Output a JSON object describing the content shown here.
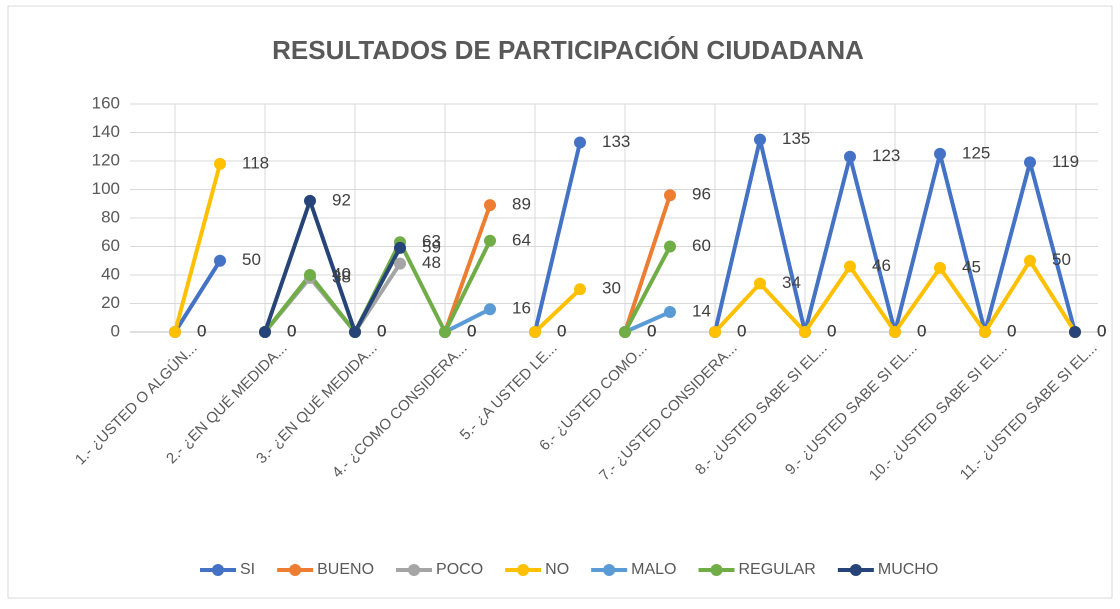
{
  "chart_data": {
    "type": "line",
    "title": "RESULTADOS DE PARTICIPACIÓN CIUDADANA",
    "categories": [
      "1.- ¿USTED O ALGÚN...",
      null,
      "2.- ¿EN QUÉ MEDIDA...",
      null,
      "3.- ¿EN QUÉ MEDIDA...",
      null,
      "4.- ¿COMO CONSIDERA...",
      null,
      "5.- ¿A USTED LE...",
      null,
      "6.- ¿USTED COMO...",
      null,
      "7.- ¿USTED CONSIDERA...",
      null,
      "8.- ¿USTED SABE SI EL...",
      null,
      "9.- ¿USTED SABE SI EL...",
      null,
      "10.- ¿USTED SABE SI EL...",
      null,
      "11.- ¿USTED SABE SI EL..."
    ],
    "series": [
      {
        "name": "SI",
        "color": "#4472c4",
        "values": [
          0,
          50,
          null,
          null,
          null,
          null,
          null,
          null,
          0,
          133,
          null,
          null,
          0,
          135,
          0,
          123,
          0,
          125,
          0,
          119,
          0
        ]
      },
      {
        "name": "BUENO",
        "color": "#ed7d31",
        "values": [
          null,
          null,
          null,
          null,
          null,
          null,
          0,
          89,
          null,
          null,
          0,
          96,
          null,
          null,
          null,
          null,
          null,
          null,
          null,
          null,
          null
        ]
      },
      {
        "name": "POCO",
        "color": "#a5a5a5",
        "values": [
          null,
          null,
          0,
          38,
          0,
          48,
          null,
          null,
          null,
          null,
          null,
          null,
          null,
          null,
          null,
          null,
          null,
          null,
          null,
          null,
          null
        ]
      },
      {
        "name": "NO",
        "color": "#ffc000",
        "values": [
          0,
          118,
          null,
          null,
          null,
          null,
          null,
          null,
          0,
          30,
          null,
          null,
          0,
          34,
          0,
          46,
          0,
          45,
          0,
          50,
          0
        ]
      },
      {
        "name": "MALO",
        "color": "#5b9bd5",
        "values": [
          null,
          null,
          null,
          null,
          null,
          null,
          0,
          16,
          null,
          null,
          0,
          14,
          null,
          null,
          null,
          null,
          null,
          null,
          null,
          null,
          null
        ]
      },
      {
        "name": "REGULAR",
        "color": "#70ad47",
        "values": [
          null,
          null,
          0,
          40,
          0,
          63,
          0,
          64,
          null,
          null,
          0,
          60,
          null,
          null,
          null,
          null,
          null,
          null,
          null,
          null,
          null
        ]
      },
      {
        "name": "MUCHO",
        "color": "#264478",
        "values": [
          null,
          null,
          0,
          92,
          0,
          59,
          null,
          null,
          null,
          null,
          null,
          null,
          null,
          null,
          null,
          null,
          null,
          null,
          null,
          null,
          0
        ]
      }
    ],
    "ylim": [
      0,
      160
    ],
    "yticks": [
      0,
      20,
      40,
      60,
      80,
      100,
      120,
      140,
      160
    ],
    "grid": true,
    "legend": "bottom"
  }
}
